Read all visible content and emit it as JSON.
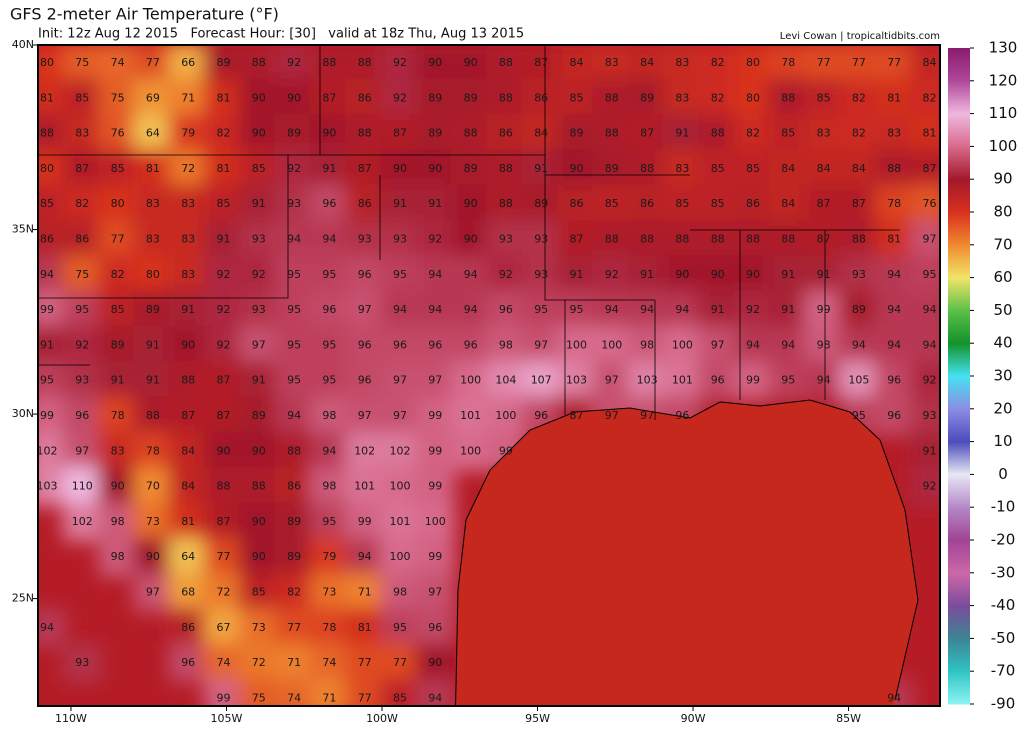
{
  "header": {
    "title": "GFS 2-meter Air Temperature (°F)",
    "subtitle": "Init: 12z Aug 12 2015   Forecast Hour: [30]   valid at 18z Thu, Aug 13 2015",
    "credit": "Levi Cowan | tropicaltidbits.com"
  },
  "map": {
    "xlim": [
      -111.06,
      -82.06
    ],
    "ylim": [
      22.09,
      40
    ],
    "xticks": [
      {
        "value": -110,
        "label": "110W"
      },
      {
        "value": -105,
        "label": "105W"
      },
      {
        "value": -100,
        "label": "100W"
      },
      {
        "value": -95,
        "label": "95W"
      },
      {
        "value": -90,
        "label": "90W"
      },
      {
        "value": -85,
        "label": "85W"
      }
    ],
    "yticks": [
      {
        "value": 40,
        "label": "40N"
      },
      {
        "value": 35,
        "label": "35N"
      },
      {
        "value": 30,
        "label": "30N"
      },
      {
        "value": 25,
        "label": "25N"
      }
    ],
    "rows": [
      [
        80,
        75,
        74,
        77,
        66,
        89,
        88,
        92,
        88,
        88,
        92,
        90,
        90,
        88,
        87,
        84,
        83,
        84,
        83,
        82,
        80,
        78,
        77,
        77,
        77,
        84
      ],
      [
        81,
        85,
        75,
        69,
        71,
        81,
        90,
        90,
        87,
        86,
        92,
        89,
        89,
        88,
        86,
        85,
        88,
        89,
        83,
        82,
        80,
        88,
        85,
        82,
        81,
        82
      ],
      [
        88,
        83,
        76,
        64,
        79,
        82,
        90,
        89,
        90,
        88,
        87,
        89,
        88,
        86,
        84,
        89,
        88,
        87,
        91,
        88,
        82,
        85,
        83,
        82,
        83,
        81
      ],
      [
        80,
        87,
        85,
        81,
        72,
        81,
        85,
        92,
        91,
        87,
        90,
        90,
        89,
        88,
        91,
        90,
        89,
        88,
        83,
        85,
        85,
        84,
        84,
        84,
        88,
        87
      ],
      [
        85,
        82,
        80,
        83,
        83,
        85,
        91,
        93,
        96,
        86,
        91,
        91,
        90,
        88,
        89,
        86,
        85,
        86,
        85,
        85,
        86,
        84,
        87,
        87,
        78,
        76
      ],
      [
        86,
        86,
        77,
        83,
        83,
        91,
        93,
        94,
        94,
        93,
        93,
        92,
        90,
        93,
        93,
        87,
        88,
        88,
        88,
        88,
        88,
        88,
        87,
        88,
        81,
        97
      ],
      [
        94,
        75,
        82,
        80,
        83,
        92,
        92,
        95,
        95,
        96,
        95,
        94,
        94,
        92,
        93,
        91,
        92,
        91,
        90,
        90,
        90,
        91,
        91,
        93,
        94,
        95
      ],
      [
        99,
        95,
        85,
        89,
        91,
        92,
        93,
        95,
        96,
        97,
        94,
        94,
        94,
        96,
        95,
        95,
        94,
        94,
        94,
        91,
        92,
        91,
        99,
        89,
        94,
        94
      ],
      [
        91,
        92,
        89,
        91,
        90,
        92,
        97,
        95,
        95,
        96,
        96,
        96,
        96,
        98,
        97,
        100,
        100,
        98,
        100,
        97,
        94,
        94,
        98,
        94,
        94,
        94
      ],
      [
        95,
        93,
        91,
        91,
        88,
        87,
        91,
        95,
        95,
        96,
        97,
        97,
        100,
        104,
        107,
        103,
        97,
        103,
        101,
        96,
        99,
        95,
        94,
        105,
        96,
        92
      ],
      [
        99,
        96,
        78,
        88,
        87,
        87,
        89,
        94,
        98,
        97,
        97,
        99,
        101,
        100,
        96,
        87,
        97,
        97,
        96,
        null,
        null,
        null,
        null,
        95,
        96,
        93
      ],
      [
        102,
        97,
        83,
        78,
        84,
        90,
        90,
        88,
        94,
        102,
        102,
        99,
        100,
        99,
        null,
        null,
        null,
        null,
        null,
        null,
        null,
        null,
        null,
        null,
        null,
        91
      ],
      [
        103,
        110,
        90,
        70,
        84,
        88,
        88,
        86,
        98,
        101,
        100,
        99,
        null,
        null,
        null,
        null,
        null,
        null,
        null,
        null,
        null,
        null,
        null,
        null,
        null,
        92
      ],
      [
        null,
        102,
        98,
        73,
        81,
        87,
        90,
        89,
        95,
        99,
        101,
        100
      ],
      [
        null,
        null,
        98,
        90,
        64,
        77,
        90,
        89,
        79,
        94,
        100,
        99
      ],
      [
        null,
        null,
        null,
        97,
        68,
        72,
        85,
        82,
        73,
        71,
        98,
        97
      ],
      [
        94,
        null,
        null,
        null,
        86,
        67,
        73,
        77,
        78,
        81,
        95,
        96
      ],
      [
        null,
        93,
        null,
        null,
        96,
        74,
        72,
        71,
        74,
        77,
        77,
        90
      ],
      [
        null,
        null,
        null,
        null,
        null,
        99,
        75,
        74,
        71,
        77,
        85,
        94,
        null,
        null,
        null,
        null,
        null,
        null,
        null,
        null,
        null,
        null,
        null,
        null,
        94
      ]
    ]
  },
  "colorbar": {
    "ticks": [
      130,
      120,
      110,
      100,
      90,
      80,
      70,
      60,
      50,
      40,
      30,
      20,
      10,
      0,
      -10,
      -20,
      -30,
      -40,
      -50,
      -70,
      -90
    ],
    "colors": [
      "#8a1a6e",
      "#b0489a",
      "#f0b8e0",
      "#d86a8c",
      "#a3182c",
      "#d8301e",
      "#f08a30",
      "#f2e468",
      "#5cc04a",
      "#12922a",
      "#46e2f2",
      "#8c8ce4",
      "#4c4cbc",
      "#e8e8f4",
      "#b488c8",
      "#a04494",
      "#cc68a8",
      "#7a4c9c",
      "#3c8494",
      "#30c4c4",
      "#8ef4f4"
    ]
  }
}
